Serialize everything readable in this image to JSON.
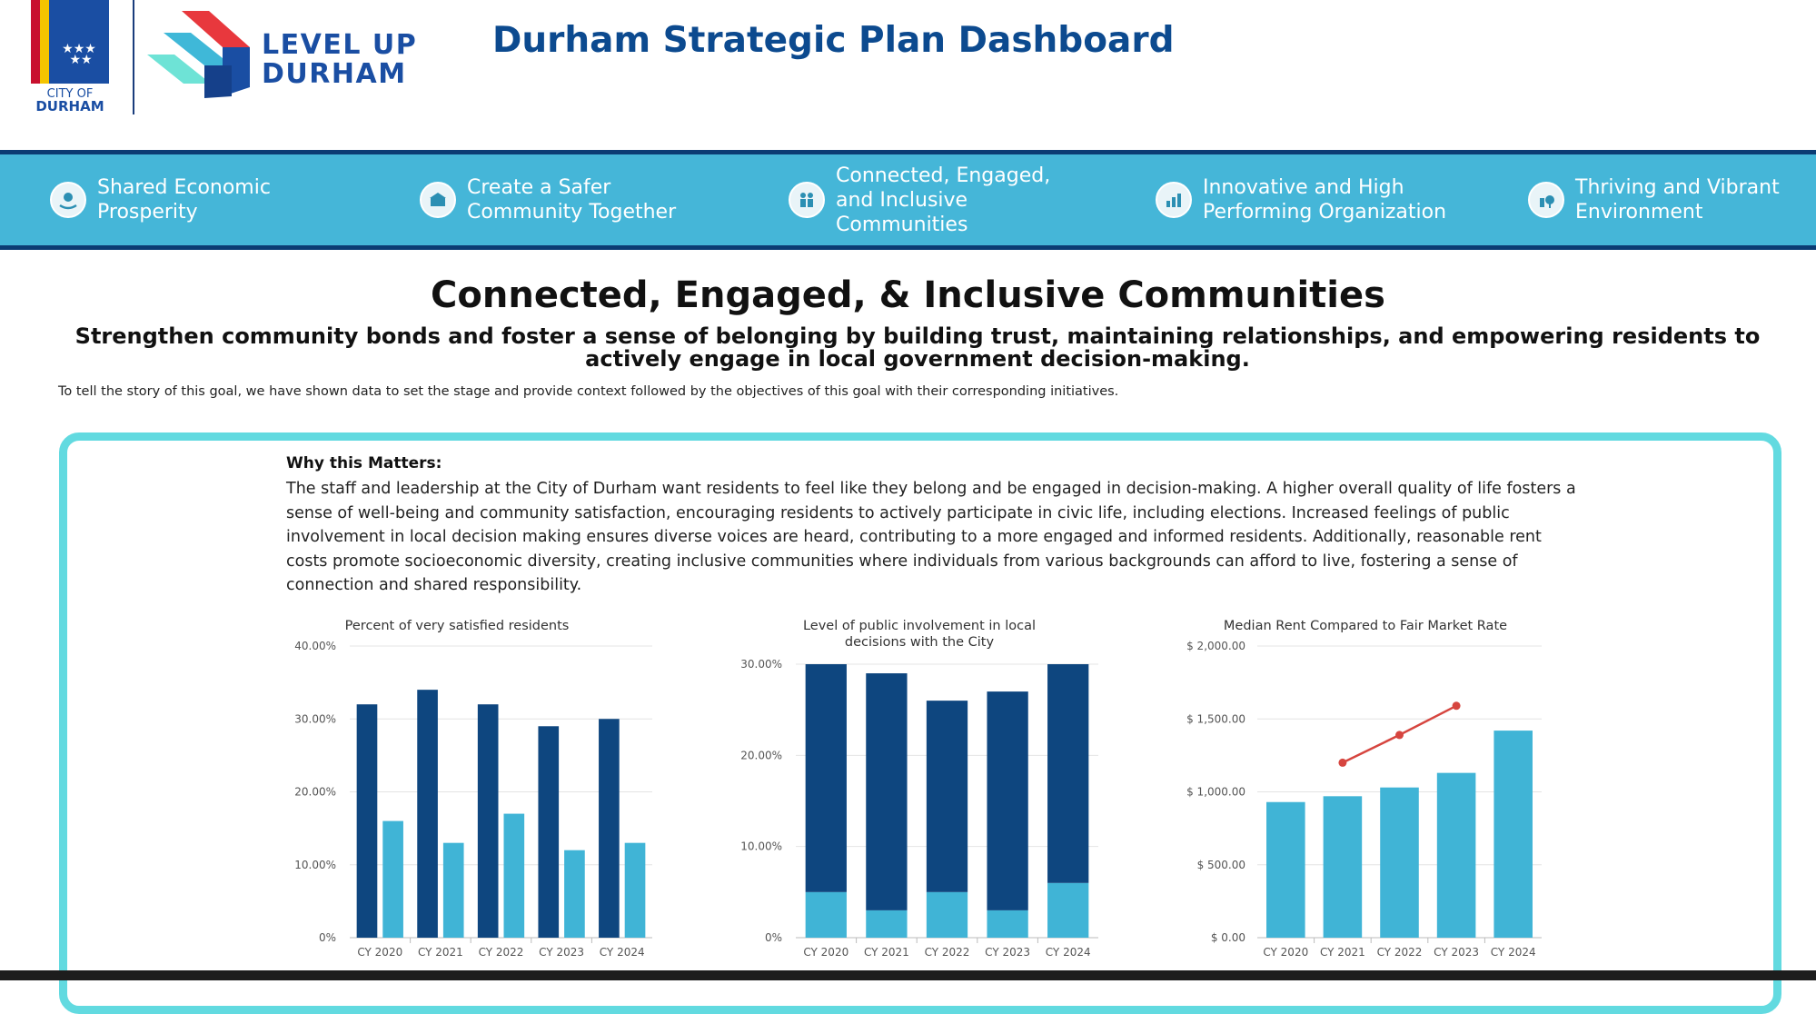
{
  "header": {
    "city_logo_text": [
      "CITY OF",
      "DURHAM"
    ],
    "brand_line1": "LEVEL UP",
    "brand_line2": "DURHAM",
    "title": "Durham Strategic Plan Dashboard"
  },
  "nav": {
    "items": [
      {
        "label": "Shared Economic\nProsperity",
        "icon": "economic-icon"
      },
      {
        "label": "Create a Safer\nCommunity Together",
        "icon": "safety-icon"
      },
      {
        "label": "Connected, Engaged,\nand Inclusive\nCommunities",
        "icon": "community-icon"
      },
      {
        "label": "Innovative and High\nPerforming Organization",
        "icon": "organization-icon"
      },
      {
        "label": "Thriving and Vibrant\nEnvironment",
        "icon": "environment-icon"
      }
    ]
  },
  "goal": {
    "title": "Connected, Engaged, & Inclusive Communities",
    "subtitle": "Strengthen community bonds and foster a sense of belonging by building trust, maintaining relationships, and empowering residents to actively engage in local government decision-making.",
    "intro": "To tell the story of this goal, we have shown data to set the stage and provide context followed by the objectives of this goal with their corresponding initiatives."
  },
  "why": {
    "heading": "Why this Matters:",
    "body": "The staff and leadership at the City of Durham want residents to feel like they belong and be engaged in decision-making. A higher overall quality of life fosters a sense of well-being and community satisfaction, encouraging residents to actively participate in civic life, including elections. Increased feelings of public involvement in local decision making ensures diverse voices are heard, contributing to a more engaged and informed residents. Additionally, reasonable rent costs promote socioeconomic diversity, creating inclusive communities where individuals from various backgrounds can afford to live, fostering a sense of connection and shared responsibility."
  },
  "colors": {
    "dark": "#0e467f",
    "light": "#40b4d6",
    "line": "#d6453f"
  },
  "chart_data": [
    {
      "type": "bar",
      "title": "Percent of very satisfied residents",
      "categories": [
        "CY 2020",
        "CY 2021",
        "CY 2022",
        "CY 2023",
        "CY 2024"
      ],
      "yticks": [
        "0%",
        "10.00%",
        "20.00%",
        "30.00%",
        "40.00%"
      ],
      "ylim": [
        0,
        40
      ],
      "series": [
        {
          "values": [
            32,
            34,
            32,
            29,
            30
          ]
        },
        {
          "values": [
            16,
            13,
            17,
            12,
            13
          ]
        }
      ]
    },
    {
      "type": "bar",
      "stacked": true,
      "title": "Level of public involvement in local decisions with the City",
      "categories": [
        "CY 2020",
        "CY 2021",
        "CY 2022",
        "CY 2023",
        "CY 2024"
      ],
      "yticks": [
        "0%",
        "10.00%",
        "20.00%",
        "30.00%"
      ],
      "ylim": [
        0,
        30
      ],
      "series": [
        {
          "values": [
            5,
            3,
            5,
            3,
            6
          ]
        },
        {
          "values": [
            25,
            26,
            21,
            24,
            24
          ]
        }
      ]
    },
    {
      "type": "bar",
      "title": "Median Rent Compared to Fair Market Rate",
      "categories": [
        "CY 2020",
        "CY 2021",
        "CY 2022",
        "CY 2023",
        "CY 2024"
      ],
      "yticks": [
        "$ 0.00",
        "$ 500.00",
        "$ 1,000.00",
        "$ 1,500.00",
        "$ 2,000.00"
      ],
      "ylim": [
        0,
        2000
      ],
      "series": [
        {
          "values": [
            930,
            970,
            1030,
            1130,
            1420
          ]
        }
      ],
      "line": {
        "values": [
          null,
          1200,
          1390,
          1590,
          null
        ]
      }
    }
  ]
}
